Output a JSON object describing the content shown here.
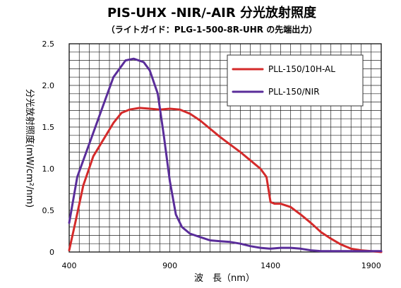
{
  "chart_data": {
    "type": "line",
    "title": "PIS-UHX -NIR/-AIR 分光放射照度",
    "subtitle": "（ライトガイド：PLG-1-500-8R-UHR の先端出力）",
    "xlabel": "波　長（nm）",
    "ylabel": "分光放射照度(mW/cm²/nm)",
    "xlim": [
      400,
      1950
    ],
    "ylim": [
      0,
      2.5
    ],
    "x_ticks": [
      400,
      900,
      1400,
      1900
    ],
    "x_tick_labels": [
      "400",
      "900",
      "1400",
      "1900"
    ],
    "y_ticks": [
      0,
      0.5,
      1.0,
      1.5,
      2.0,
      2.5
    ],
    "y_tick_labels": [
      "0",
      "0.5",
      "1.0",
      "1.5",
      "2.0",
      "2.5"
    ],
    "grid": true,
    "legend_position": "top-right",
    "series": [
      {
        "name": "PLL-150/10H-AL",
        "color": "#d42a2a",
        "points": [
          [
            400,
            0.02
          ],
          [
            430,
            0.35
          ],
          [
            470,
            0.8
          ],
          [
            520,
            1.15
          ],
          [
            570,
            1.35
          ],
          [
            620,
            1.55
          ],
          [
            660,
            1.67
          ],
          [
            700,
            1.71
          ],
          [
            750,
            1.73
          ],
          [
            800,
            1.72
          ],
          [
            850,
            1.71
          ],
          [
            900,
            1.72
          ],
          [
            950,
            1.71
          ],
          [
            1000,
            1.66
          ],
          [
            1050,
            1.58
          ],
          [
            1100,
            1.48
          ],
          [
            1150,
            1.38
          ],
          [
            1200,
            1.29
          ],
          [
            1250,
            1.2
          ],
          [
            1300,
            1.1
          ],
          [
            1350,
            1.0
          ],
          [
            1380,
            0.9
          ],
          [
            1400,
            0.6
          ],
          [
            1420,
            0.58
          ],
          [
            1450,
            0.58
          ],
          [
            1500,
            0.54
          ],
          [
            1550,
            0.45
          ],
          [
            1600,
            0.35
          ],
          [
            1650,
            0.24
          ],
          [
            1700,
            0.16
          ],
          [
            1750,
            0.09
          ],
          [
            1800,
            0.04
          ],
          [
            1850,
            0.02
          ],
          [
            1900,
            0.01
          ],
          [
            1950,
            0.0
          ]
        ]
      },
      {
        "name": "PLL-150/NIR",
        "color": "#5a2d9a",
        "points": [
          [
            400,
            0.35
          ],
          [
            440,
            0.9
          ],
          [
            500,
            1.3
          ],
          [
            560,
            1.7
          ],
          [
            620,
            2.1
          ],
          [
            680,
            2.3
          ],
          [
            720,
            2.32
          ],
          [
            770,
            2.28
          ],
          [
            800,
            2.18
          ],
          [
            840,
            1.9
          ],
          [
            870,
            1.4
          ],
          [
            900,
            0.85
          ],
          [
            930,
            0.45
          ],
          [
            960,
            0.3
          ],
          [
            1000,
            0.22
          ],
          [
            1050,
            0.18
          ],
          [
            1100,
            0.14
          ],
          [
            1150,
            0.13
          ],
          [
            1200,
            0.12
          ],
          [
            1250,
            0.1
          ],
          [
            1300,
            0.07
          ],
          [
            1350,
            0.05
          ],
          [
            1400,
            0.04
          ],
          [
            1450,
            0.05
          ],
          [
            1500,
            0.05
          ],
          [
            1550,
            0.04
          ],
          [
            1600,
            0.02
          ],
          [
            1650,
            0.01
          ],
          [
            1700,
            0.01
          ],
          [
            1800,
            0.01
          ],
          [
            1950,
            0.01
          ]
        ]
      }
    ]
  }
}
